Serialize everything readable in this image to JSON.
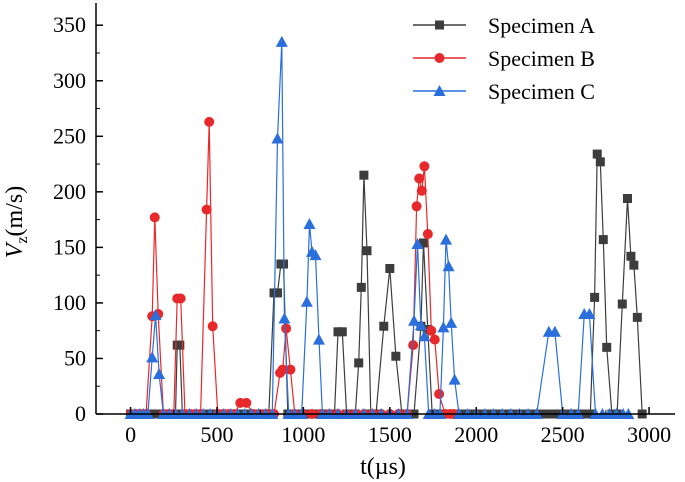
{
  "chart_data": {
    "type": "line",
    "title": "",
    "xlabel": "t(µs)",
    "ylabel_main": "V",
    "ylabel_sub": "z",
    "ylabel_unit": "(m/s)",
    "xlim": [
      -200,
      3150
    ],
    "ylim": [
      0,
      370
    ],
    "xticks": [
      0,
      500,
      1000,
      1500,
      2000,
      2500,
      3000
    ],
    "yticks": [
      0,
      50,
      100,
      150,
      200,
      250,
      300,
      350
    ],
    "legend_position": "top-right",
    "series": [
      {
        "name": "Specimen A",
        "color": "#3d3d3d",
        "marker": "square",
        "points": [
          [
            0,
            0
          ],
          [
            20,
            0
          ],
          [
            40,
            0
          ],
          [
            60,
            0
          ],
          [
            80,
            0
          ],
          [
            100,
            0
          ],
          [
            120,
            0
          ],
          [
            140,
            0
          ],
          [
            160,
            0
          ],
          [
            180,
            0
          ],
          [
            200,
            0
          ],
          [
            220,
            0
          ],
          [
            240,
            0
          ],
          [
            260,
            0
          ],
          [
            270,
            62
          ],
          [
            285,
            62
          ],
          [
            300,
            0
          ],
          [
            340,
            0
          ],
          [
            380,
            0
          ],
          [
            420,
            0
          ],
          [
            460,
            0
          ],
          [
            500,
            0
          ],
          [
            540,
            0
          ],
          [
            580,
            0
          ],
          [
            620,
            0
          ],
          [
            660,
            0
          ],
          [
            700,
            0
          ],
          [
            740,
            0
          ],
          [
            780,
            0
          ],
          [
            800,
            0
          ],
          [
            830,
            109
          ],
          [
            850,
            109
          ],
          [
            870,
            135
          ],
          [
            885,
            135
          ],
          [
            910,
            0
          ],
          [
            950,
            0
          ],
          [
            990,
            0
          ],
          [
            1030,
            0
          ],
          [
            1070,
            0
          ],
          [
            1110,
            0
          ],
          [
            1150,
            0
          ],
          [
            1180,
            0
          ],
          [
            1200,
            74
          ],
          [
            1225,
            74
          ],
          [
            1250,
            0
          ],
          [
            1280,
            0
          ],
          [
            1300,
            0
          ],
          [
            1320,
            46
          ],
          [
            1335,
            114
          ],
          [
            1350,
            215
          ],
          [
            1368,
            147
          ],
          [
            1390,
            0
          ],
          [
            1420,
            0
          ],
          [
            1465,
            79
          ],
          [
            1500,
            131
          ],
          [
            1535,
            52
          ],
          [
            1570,
            0
          ],
          [
            1610,
            0
          ],
          [
            1640,
            0
          ],
          [
            1680,
            79
          ],
          [
            1695,
            154
          ],
          [
            1720,
            76
          ],
          [
            1745,
            0
          ],
          [
            1780,
            0
          ],
          [
            1820,
            0
          ],
          [
            1860,
            0
          ],
          [
            1900,
            0
          ],
          [
            1940,
            0
          ],
          [
            1980,
            0
          ],
          [
            2020,
            0
          ],
          [
            2060,
            0
          ],
          [
            2100,
            0
          ],
          [
            2140,
            0
          ],
          [
            2180,
            0
          ],
          [
            2220,
            0
          ],
          [
            2260,
            0
          ],
          [
            2300,
            0
          ],
          [
            2340,
            0
          ],
          [
            2380,
            0
          ],
          [
            2420,
            0
          ],
          [
            2460,
            0
          ],
          [
            2500,
            0
          ],
          [
            2540,
            0
          ],
          [
            2580,
            0
          ],
          [
            2620,
            0
          ],
          [
            2660,
            0
          ],
          [
            2685,
            105
          ],
          [
            2700,
            234
          ],
          [
            2718,
            227
          ],
          [
            2735,
            157
          ],
          [
            2755,
            60
          ],
          [
            2785,
            0
          ],
          [
            2815,
            0
          ],
          [
            2845,
            99
          ],
          [
            2875,
            194
          ],
          [
            2895,
            142
          ],
          [
            2912,
            134
          ],
          [
            2932,
            87
          ],
          [
            2960,
            0
          ]
        ]
      },
      {
        "name": "Specimen B",
        "color": "#e8292b",
        "marker": "circle",
        "points": [
          [
            0,
            0
          ],
          [
            30,
            0
          ],
          [
            60,
            0
          ],
          [
            90,
            0
          ],
          [
            125,
            88
          ],
          [
            140,
            177
          ],
          [
            160,
            90
          ],
          [
            190,
            0
          ],
          [
            220,
            0
          ],
          [
            250,
            0
          ],
          [
            270,
            104
          ],
          [
            290,
            104
          ],
          [
            315,
            0
          ],
          [
            345,
            0
          ],
          [
            375,
            0
          ],
          [
            405,
            0
          ],
          [
            440,
            184
          ],
          [
            455,
            263
          ],
          [
            475,
            79
          ],
          [
            505,
            0
          ],
          [
            535,
            0
          ],
          [
            565,
            0
          ],
          [
            600,
            0
          ],
          [
            635,
            10
          ],
          [
            670,
            10
          ],
          [
            710,
            0
          ],
          [
            750,
            0
          ],
          [
            790,
            0
          ],
          [
            830,
            0
          ],
          [
            865,
            37
          ],
          [
            880,
            40
          ],
          [
            900,
            77
          ],
          [
            925,
            40
          ],
          [
            950,
            0
          ],
          [
            1000,
            0
          ],
          [
            1050,
            0
          ],
          [
            1100,
            0
          ],
          [
            1150,
            0
          ],
          [
            1200,
            0
          ],
          [
            1250,
            0
          ],
          [
            1300,
            0
          ],
          [
            1350,
            0
          ],
          [
            1400,
            0
          ],
          [
            1450,
            0
          ],
          [
            1500,
            0
          ],
          [
            1550,
            0
          ],
          [
            1600,
            0
          ],
          [
            1635,
            62
          ],
          [
            1655,
            187
          ],
          [
            1670,
            212
          ],
          [
            1685,
            201
          ],
          [
            1700,
            223
          ],
          [
            1720,
            162
          ],
          [
            1740,
            75
          ],
          [
            1760,
            67
          ],
          [
            1785,
            18
          ],
          [
            1820,
            0
          ],
          [
            1850,
            0
          ],
          [
            1870,
            0
          ]
        ]
      },
      {
        "name": "Specimen C",
        "color": "#2a6fdb",
        "marker": "triangle",
        "points": [
          [
            0,
            0
          ],
          [
            25,
            0
          ],
          [
            50,
            0
          ],
          [
            75,
            0
          ],
          [
            100,
            0
          ],
          [
            125,
            51
          ],
          [
            145,
            89
          ],
          [
            165,
            36
          ],
          [
            190,
            0
          ],
          [
            225,
            0
          ],
          [
            260,
            0
          ],
          [
            300,
            0
          ],
          [
            340,
            0
          ],
          [
            380,
            0
          ],
          [
            420,
            0
          ],
          [
            460,
            0
          ],
          [
            500,
            0
          ],
          [
            540,
            0
          ],
          [
            580,
            0
          ],
          [
            620,
            0
          ],
          [
            660,
            0
          ],
          [
            700,
            0
          ],
          [
            740,
            0
          ],
          [
            780,
            0
          ],
          [
            820,
            0
          ],
          [
            850,
            248
          ],
          [
            875,
            335
          ],
          [
            890,
            86
          ],
          [
            915,
            0
          ],
          [
            950,
            0
          ],
          [
            990,
            0
          ],
          [
            1020,
            101
          ],
          [
            1035,
            171
          ],
          [
            1050,
            146
          ],
          [
            1070,
            143
          ],
          [
            1090,
            67
          ],
          [
            1110,
            0
          ],
          [
            1150,
            0
          ],
          [
            1200,
            0
          ],
          [
            1250,
            0
          ],
          [
            1300,
            0
          ],
          [
            1350,
            0
          ],
          [
            1400,
            0
          ],
          [
            1450,
            0
          ],
          [
            1500,
            0
          ],
          [
            1550,
            0
          ],
          [
            1600,
            0
          ],
          [
            1640,
            84
          ],
          [
            1660,
            153
          ],
          [
            1680,
            80
          ],
          [
            1700,
            70
          ],
          [
            1725,
            0
          ],
          [
            1760,
            0
          ],
          [
            1790,
            0
          ],
          [
            1810,
            78
          ],
          [
            1825,
            157
          ],
          [
            1840,
            133
          ],
          [
            1855,
            82
          ],
          [
            1875,
            31
          ],
          [
            1900,
            0
          ],
          [
            1950,
            0
          ],
          [
            2000,
            0
          ],
          [
            2050,
            0
          ],
          [
            2100,
            0
          ],
          [
            2150,
            0
          ],
          [
            2200,
            0
          ],
          [
            2250,
            0
          ],
          [
            2300,
            0
          ],
          [
            2350,
            0
          ],
          [
            2420,
            74
          ],
          [
            2455,
            74
          ],
          [
            2500,
            0
          ],
          [
            2550,
            0
          ],
          [
            2590,
            0
          ],
          [
            2625,
            90
          ],
          [
            2655,
            90
          ],
          [
            2690,
            0
          ],
          [
            2730,
            0
          ],
          [
            2770,
            0
          ],
          [
            2810,
            0
          ],
          [
            2850,
            0
          ],
          [
            2880,
            0
          ]
        ]
      }
    ]
  }
}
